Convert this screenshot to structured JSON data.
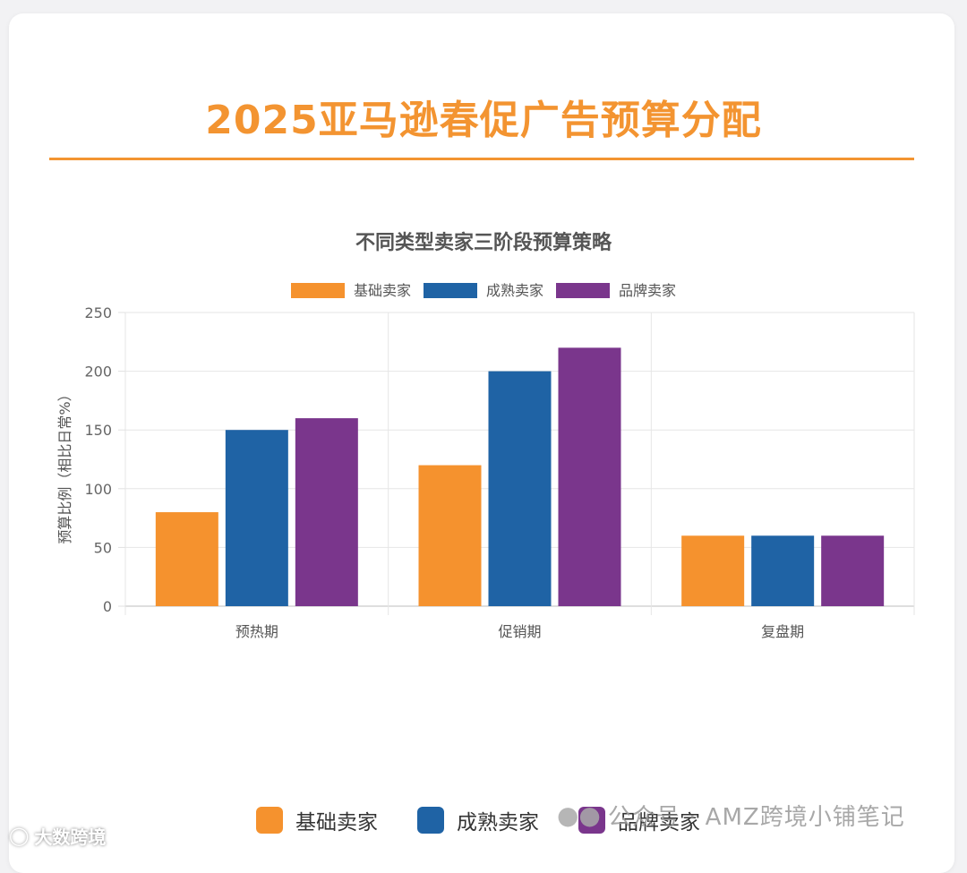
{
  "page": {
    "title": "2025亚马逊春促广告预算分配",
    "accent": "#f39431"
  },
  "chart_data": {
    "type": "bar",
    "title": "不同类型卖家三阶段预算策略",
    "xlabel": "",
    "ylabel": "预算比例（相比日常%）",
    "categories": [
      "预热期",
      "促销期",
      "复盘期"
    ],
    "ylim": [
      0,
      250
    ],
    "yticks": [
      0,
      50,
      100,
      150,
      200,
      250
    ],
    "grid": true,
    "legend_position": "top",
    "series": [
      {
        "name": "基础卖家",
        "color": "#f5922e",
        "values": [
          80,
          120,
          60
        ]
      },
      {
        "name": "成熟卖家",
        "color": "#1f63a5",
        "values": [
          150,
          200,
          60
        ]
      },
      {
        "name": "品牌卖家",
        "color": "#7a368c",
        "values": [
          160,
          220,
          60
        ]
      }
    ]
  },
  "bottom_legend": [
    {
      "label": "基础卖家",
      "color": "#f5922e"
    },
    {
      "label": "成熟卖家",
      "color": "#1f63a5"
    },
    {
      "label": "品牌卖家",
      "color": "#7a368c"
    }
  ],
  "watermarks": {
    "right_logo": "wechat-logo",
    "right_text": "公众号 · AMZ跨境小铺笔记",
    "left_logo": "weibo-logo",
    "left_text": "大数跨境"
  }
}
